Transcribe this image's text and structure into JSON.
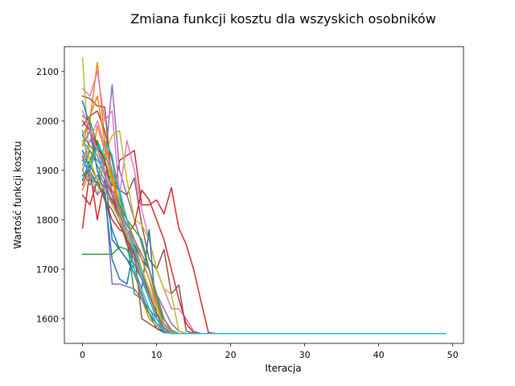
{
  "chart_data": {
    "type": "line",
    "title": "Zmiana funkcji kosztu dla wszyskich osobników",
    "xlabel": "Iteracja",
    "ylabel": "Wartość funkcji kosztu",
    "xlim": [
      -2.45,
      51.45
    ],
    "ylim": [
      1550,
      2150
    ],
    "xticks": [
      0,
      10,
      20,
      30,
      40,
      50
    ],
    "yticks": [
      1600,
      1700,
      1800,
      1900,
      2000,
      2100
    ],
    "grid": false,
    "legend": "none",
    "converged_value": 1570,
    "series": [
      {
        "color": "#1f77b4",
        "values": [
          1940,
          1900,
          1870,
          1850,
          1780,
          1740,
          1720,
          1690,
          1650,
          1610,
          1580,
          1572,
          1571,
          1570
        ]
      },
      {
        "color": "#ff7f0e",
        "values": [
          1970,
          2000,
          2118,
          1960,
          1900,
          1830,
          1780,
          1740,
          1700,
          1650,
          1610,
          1585,
          1572,
          1570
        ]
      },
      {
        "color": "#2ca02c",
        "values": [
          1730,
          1730,
          1730,
          1730,
          1730,
          1745,
          1740,
          1710,
          1680,
          1640,
          1600,
          1580,
          1572,
          1570
        ]
      },
      {
        "color": "#d62728",
        "values": [
          1783,
          1900,
          1800,
          1880,
          1830,
          1920,
          1930,
          1940,
          1830,
          1830,
          1840,
          1812,
          1865,
          1783,
          1750,
          1700,
          1635,
          1572,
          1570
        ]
      },
      {
        "color": "#9467bd",
        "values": [
          1920,
          1960,
          1950,
          1910,
          2073,
          1900,
          1850,
          1800,
          1750,
          1700,
          1650,
          1620,
          1590,
          1575,
          1570
        ]
      },
      {
        "color": "#8c564b",
        "values": [
          2050,
          2045,
          2030,
          2028,
          1870,
          1860,
          1850,
          1885,
          1790,
          1720,
          1700,
          1740,
          1650,
          1668,
          1575,
          1570
        ]
      },
      {
        "color": "#e377c2",
        "values": [
          2065,
          2050,
          2100,
          2000,
          2020,
          1850,
          1960,
          1900,
          1820,
          1760,
          1700,
          1660,
          1620,
          1620,
          1600,
          1575,
          1570
        ]
      },
      {
        "color": "#7f7f7f",
        "values": [
          1900,
          1870,
          1890,
          1860,
          1840,
          1810,
          1780,
          1750,
          1700,
          1650,
          1610,
          1590,
          1575,
          1570
        ]
      },
      {
        "color": "#bcbd22",
        "values": [
          2128,
          1900,
          1850,
          1930,
          1970,
          1980,
          1880,
          1800,
          1790,
          1760,
          1700,
          1660,
          1650,
          1575,
          1570
        ]
      },
      {
        "color": "#17becf",
        "values": [
          1960,
          1940,
          1920,
          1900,
          1860,
          1820,
          1780,
          1740,
          1700,
          1660,
          1620,
          1585,
          1572,
          1570
        ]
      },
      {
        "color": "#1f77b4",
        "values": [
          1880,
          1920,
          1960,
          1900,
          1760,
          1740,
          1720,
          1700,
          1660,
          1780,
          1600,
          1580,
          1572,
          1570
        ]
      },
      {
        "color": "#ff7f0e",
        "values": [
          1860,
          1900,
          1990,
          1940,
          1880,
          1820,
          1760,
          1700,
          1640,
          1600,
          1585,
          1575,
          1570
        ]
      },
      {
        "color": "#2ca02c",
        "values": [
          2010,
          2000,
          1950,
          1900,
          1880,
          1860,
          1760,
          1650,
          1640,
          1610,
          1590,
          1580,
          1572,
          1570
        ]
      },
      {
        "color": "#d62728",
        "values": [
          1850,
          1830,
          1880,
          1840,
          1800,
          1780,
          1770,
          1790,
          1860,
          1840,
          1800,
          1760,
          1700,
          1640,
          1590,
          1572,
          1570
        ]
      },
      {
        "color": "#9467bd",
        "values": [
          1950,
          1980,
          1900,
          1870,
          1670,
          1670,
          1665,
          1660,
          1640,
          1620,
          1600,
          1585,
          1575,
          1570
        ]
      },
      {
        "color": "#8c564b",
        "values": [
          1990,
          2010,
          2020,
          1980,
          1920,
          1850,
          1800,
          1740,
          1600,
          1590,
          1580,
          1575,
          1570
        ]
      },
      {
        "color": "#e377c2",
        "values": [
          1920,
          1960,
          2000,
          1950,
          1900,
          1860,
          1800,
          1750,
          1720,
          1680,
          1620,
          1580,
          1572,
          1570
        ]
      },
      {
        "color": "#7f7f7f",
        "values": [
          1970,
          1950,
          1930,
          1890,
          1850,
          1810,
          1770,
          1730,
          1690,
          1650,
          1610,
          1580,
          1572,
          1570
        ]
      },
      {
        "color": "#bcbd22",
        "values": [
          1910,
          1950,
          1940,
          1920,
          1880,
          1840,
          1800,
          1760,
          1720,
          1680,
          1640,
          1600,
          1578,
          1570
        ]
      },
      {
        "color": "#17becf",
        "values": [
          1980,
          1890,
          1870,
          1960,
          1930,
          1850,
          1760,
          1700,
          1660,
          1620,
          1590,
          1576,
          1570
        ]
      },
      {
        "color": "#1f77b4",
        "values": [
          2040,
          1990,
          1900,
          1850,
          1720,
          1680,
          1670,
          1750,
          1720,
          1700,
          1650,
          1600,
          1575,
          1570
        ]
      },
      {
        "color": "#ff7f0e",
        "values": [
          1950,
          2010,
          2050,
          1960,
          1890,
          1830,
          1800,
          1760,
          1720,
          1680,
          1630,
          1590,
          1572,
          1570
        ]
      },
      {
        "color": "#2ca02c",
        "values": [
          1890,
          1900,
          1960,
          1920,
          1860,
          1830,
          1800,
          1780,
          1760,
          1700,
          1640,
          1590,
          1572,
          1570
        ]
      },
      {
        "color": "#d62728",
        "values": [
          2000,
          1980,
          1950,
          1920,
          1850,
          1800,
          1750,
          1720,
          1680,
          1640,
          1600,
          1580,
          1572,
          1570
        ]
      },
      {
        "color": "#9467bd",
        "values": [
          1930,
          1880,
          1850,
          1870,
          1840,
          1800,
          1760,
          1720,
          1680,
          1640,
          1600,
          1580,
          1570
        ]
      },
      {
        "color": "#8c564b",
        "values": [
          1870,
          1910,
          1880,
          1840,
          1820,
          1790,
          1760,
          1730,
          1690,
          1650,
          1610,
          1585,
          1572,
          1570
        ]
      },
      {
        "color": "#e377c2",
        "values": [
          2020,
          1980,
          1940,
          1900,
          1860,
          1820,
          1780,
          1740,
          1700,
          1660,
          1620,
          1590,
          1572,
          1570
        ]
      },
      {
        "color": "#7f7f7f",
        "values": [
          1900,
          1940,
          1910,
          1880,
          1850,
          1820,
          1790,
          1760,
          1730,
          1700,
          1650,
          1600,
          1575,
          1570
        ]
      },
      {
        "color": "#bcbd22",
        "values": [
          1960,
          1920,
          1880,
          1860,
          1830,
          1800,
          1770,
          1740,
          1700,
          1660,
          1620,
          1585,
          1572,
          1570
        ]
      },
      {
        "color": "#17becf",
        "values": [
          1920,
          1900,
          1950,
          1930,
          1900,
          1860,
          1800,
          1740,
          1690,
          1640,
          1600,
          1575,
          1570
        ]
      }
    ]
  }
}
